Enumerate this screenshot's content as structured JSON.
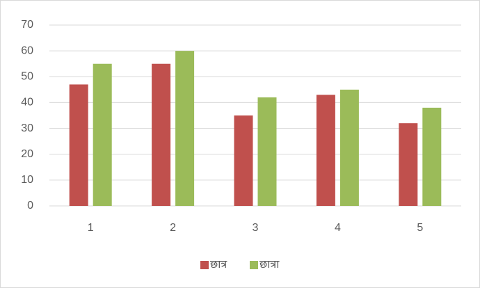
{
  "chart_data": {
    "type": "bar",
    "categories": [
      "1",
      "2",
      "3",
      "4",
      "5"
    ],
    "series": [
      {
        "name": "छात्र",
        "color": "#c0504d",
        "values": [
          47,
          55,
          35,
          43,
          32
        ]
      },
      {
        "name": "छात्रा",
        "color": "#9bbb59",
        "values": [
          55,
          60,
          42,
          45,
          38
        ]
      }
    ],
    "ylim": [
      0,
      70
    ],
    "yticks": [
      0,
      10,
      20,
      30,
      40,
      50,
      60,
      70
    ],
    "grid": true,
    "legend": "bottom"
  }
}
